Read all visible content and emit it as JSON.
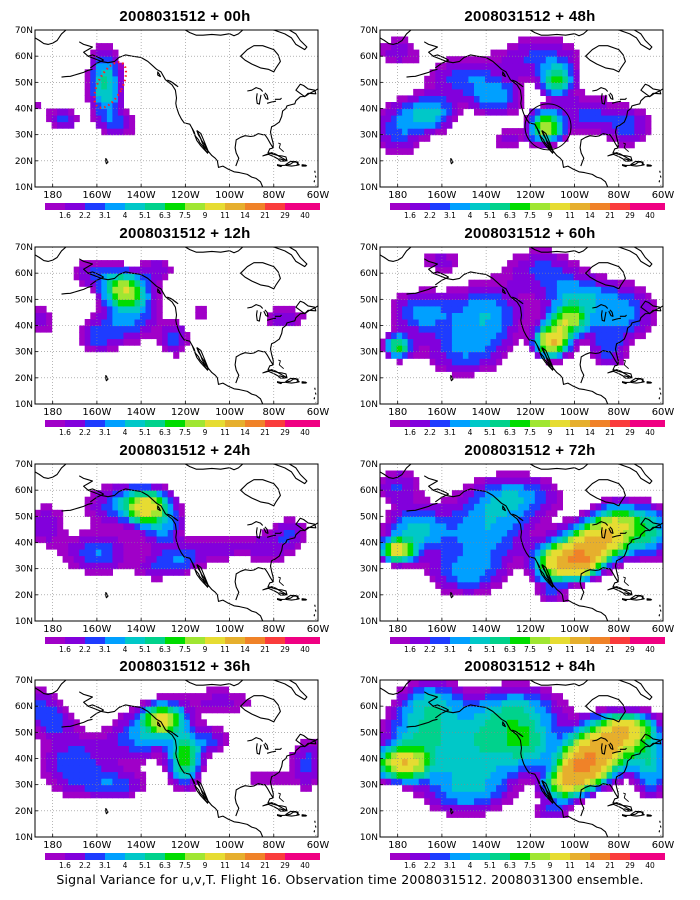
{
  "panels": [
    {
      "title": "2008031512 + 00h"
    },
    {
      "title": "2008031512 + 12h"
    },
    {
      "title": "2008031512 + 24h"
    },
    {
      "title": "2008031512 + 36h"
    },
    {
      "title": "2008031512 + 48h"
    },
    {
      "title": "2008031512 + 60h"
    },
    {
      "title": "2008031512 + 72h"
    },
    {
      "title": "2008031512 + 84h"
    }
  ],
  "lat_labels": [
    "70N",
    "60N",
    "50N",
    "40N",
    "30N",
    "20N",
    "10N"
  ],
  "lon_labels": [
    "180",
    "160W",
    "140W",
    "120W",
    "100W",
    "80W",
    "60W"
  ],
  "colorbar": {
    "labels": [
      "1.6",
      "2.2",
      "3.1",
      "4",
      "5.1",
      "6.3",
      "7.5",
      "9",
      "11",
      "14",
      "21",
      "29",
      "40"
    ],
    "colors": [
      "#a000c8",
      "#8200dc",
      "#1e3cff",
      "#00a0ff",
      "#00c8c8",
      "#00d28c",
      "#00dc00",
      "#a0e632",
      "#e6dc32",
      "#e6af2d",
      "#f08228",
      "#fa3c3c",
      "#f00082"
    ]
  },
  "chart_data": [
    {
      "type": "heatmap",
      "title": "2008031512 + 00h",
      "lead_hours": 0,
      "max_level": "7.5",
      "flight_track": "red dotted ellipse near 160W-150W, 40N-58N"
    },
    {
      "type": "heatmap",
      "title": "2008031512 + 12h",
      "lead_hours": 12,
      "max_level": "9"
    },
    {
      "type": "heatmap",
      "title": "2008031512 + 24h",
      "lead_hours": 24,
      "max_level": "11"
    },
    {
      "type": "heatmap",
      "title": "2008031512 + 36h",
      "lead_hours": 36,
      "max_level": "11"
    },
    {
      "type": "heatmap",
      "title": "2008031512 + 48h",
      "lead_hours": 48,
      "max_level": "11",
      "verification_circle": "circle centered near 113W, 32N"
    },
    {
      "type": "heatmap",
      "title": "2008031512 + 60h",
      "lead_hours": 60,
      "max_level": "14"
    },
    {
      "type": "heatmap",
      "title": "2008031512 + 72h",
      "lead_hours": 72,
      "max_level": "21"
    },
    {
      "type": "heatmap",
      "title": "2008031512 + 84h",
      "lead_hours": 84,
      "max_level": "21"
    }
  ],
  "caption": "Signal Variance for u,v,T. Flight 16. Observation time 2008031512. 2008031300 ensemble."
}
